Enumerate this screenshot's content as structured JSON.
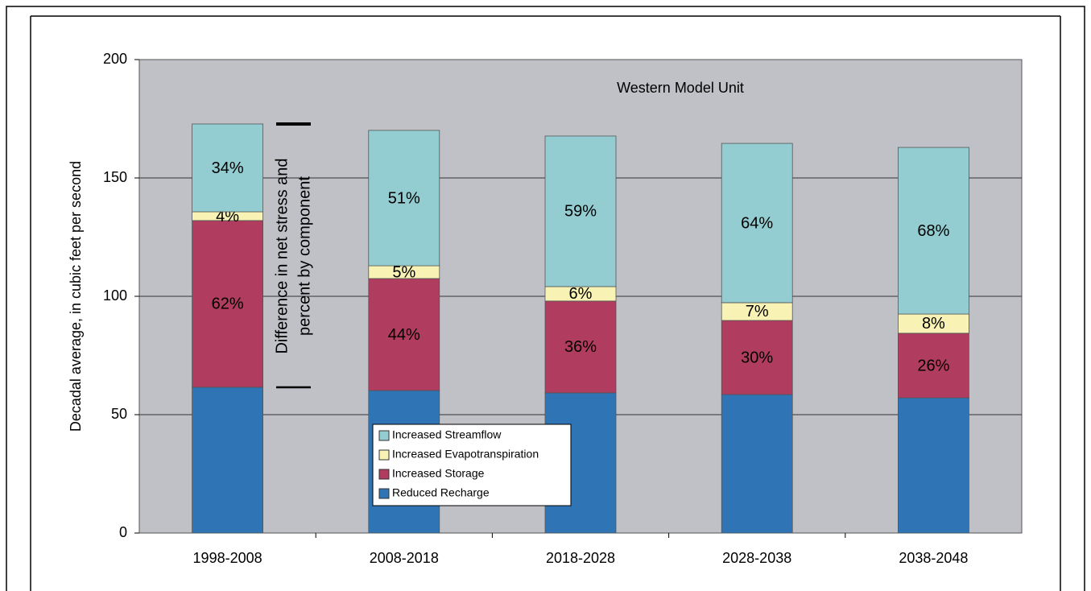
{
  "chart_data": {
    "type": "stacked_bar",
    "title": "Western Model Unit",
    "y_label": "Decadal average, in cubic feet per second",
    "annotation": [
      "Difference in net stress and",
      "percent by component"
    ],
    "categories": [
      "1998-2008",
      "2008-2018",
      "2018-2028",
      "2028-2038",
      "2038-2048"
    ],
    "series": [
      {
        "name": "Reduced Recharge",
        "color": "#2f74b5",
        "values": [
          61.6,
          60.2,
          59.2,
          58.5,
          57.1
        ]
      },
      {
        "name": "Increased Storage",
        "color": "#b03c5f",
        "values": [
          70.4,
          47.3,
          38.8,
          31.3,
          27.3
        ],
        "percent_labels": [
          "62%",
          "44%",
          "36%",
          "30%",
          "26%"
        ]
      },
      {
        "name": "Increased Evapotranspiration",
        "color": "#f8f3b4",
        "values": [
          3.7,
          5.4,
          6.1,
          7.5,
          8.1
        ],
        "percent_labels": [
          "4%",
          "5%",
          "6%",
          "7%",
          "8%"
        ]
      },
      {
        "name": "Increased Streamflow",
        "color": "#94cdd1",
        "values": [
          37.1,
          57.2,
          63.6,
          67.3,
          70.4
        ],
        "percent_labels": [
          "34%",
          "51%",
          "59%",
          "64%",
          "68%"
        ]
      }
    ],
    "ylim": [
      0,
      200
    ],
    "yticks": [
      0,
      50,
      100,
      150,
      200
    ],
    "grid": true
  }
}
